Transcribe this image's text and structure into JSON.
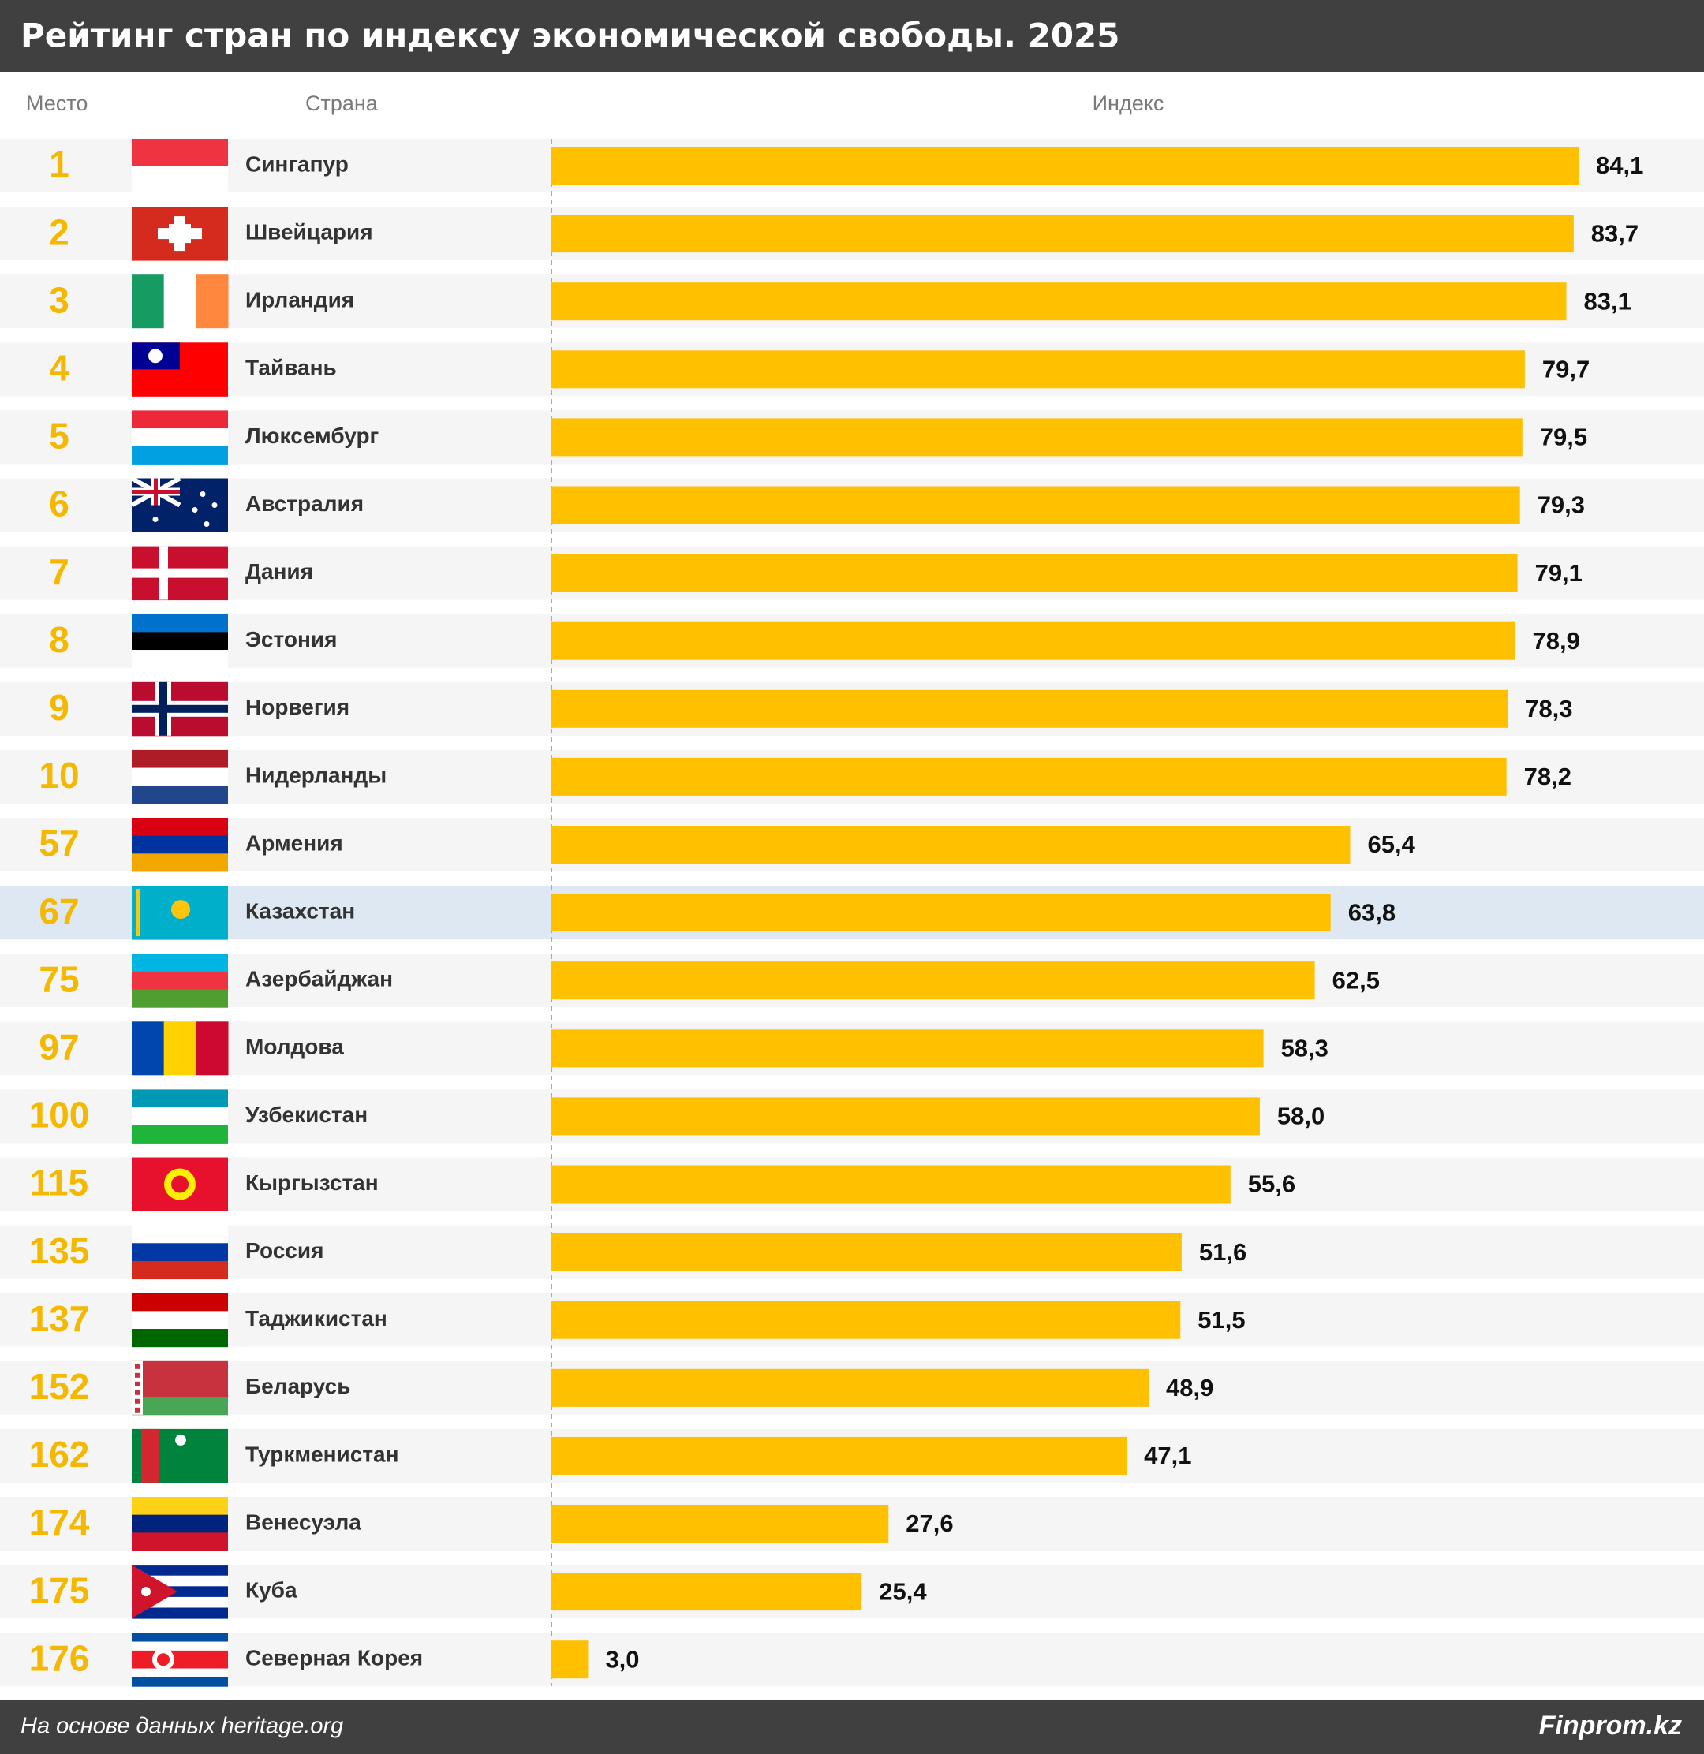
{
  "chart_data": {
    "type": "bar",
    "title": "Рейтинг стран по индексу экономической свободы. 2025",
    "column_headers": [
      "Место",
      "Страна",
      "Индекс"
    ],
    "ranks": [
      1,
      2,
      3,
      4,
      5,
      6,
      7,
      8,
      9,
      10,
      57,
      67,
      75,
      97,
      100,
      115,
      135,
      137,
      152,
      162,
      174,
      175,
      176
    ],
    "categories": [
      "Сингапур",
      "Швейцария",
      "Ирландия",
      "Тайвань",
      "Люксембург",
      "Австралия",
      "Дания",
      "Эстония",
      "Норвегия",
      "Нидерланды",
      "Армения",
      "Казахстан",
      "Азербайджан",
      "Молдова",
      "Узбекистан",
      "Кыргызстан",
      "Россия",
      "Таджикистан",
      "Беларусь",
      "Туркменистан",
      "Венесуэла",
      "Куба",
      "Северная Корея"
    ],
    "values": [
      84.1,
      83.7,
      83.1,
      79.7,
      79.5,
      79.3,
      79.1,
      78.9,
      78.3,
      78.2,
      65.4,
      63.8,
      62.5,
      58.3,
      58.0,
      55.6,
      51.6,
      51.5,
      48.9,
      47.1,
      27.6,
      25.4,
      3.0
    ],
    "value_labels": [
      "84,1",
      "83,7",
      "83,1",
      "79,7",
      "79,5",
      "79,3",
      "79,1",
      "78,9",
      "78,3",
      "78,2",
      "65,4",
      "63,8",
      "62,5",
      "58,3",
      "58,0",
      "55,6",
      "51,6",
      "51,5",
      "48,9",
      "47,1",
      "27,6",
      "25,4",
      "3,0"
    ],
    "color": "#ffc000",
    "rank_color": "#f5b800",
    "highlight": "Казахстан",
    "highlight_color": "#dde8f3",
    "source": "На основе данных heritage.org",
    "brand": "Finprom.kz"
  }
}
